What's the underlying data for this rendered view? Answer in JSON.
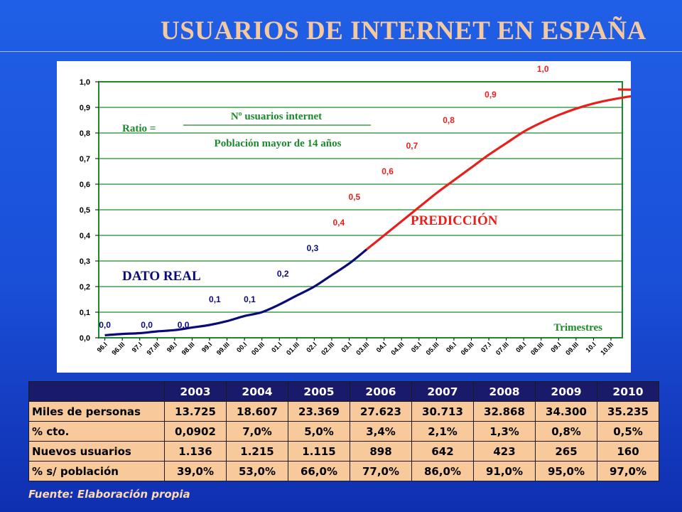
{
  "title": "USUARIOS DE INTERNET EN ESPAÑA",
  "chart_data": {
    "type": "line",
    "ylim": [
      0,
      1
    ],
    "y_ticks": [
      "1,0",
      "0,9",
      "0,8",
      "0,7",
      "0,6",
      "0,5",
      "0,4",
      "0,3",
      "0,2",
      "0,1",
      "0,0"
    ],
    "x_ticks": [
      "96.I",
      "96.III",
      "97.I",
      "97.III",
      "98.I",
      "98.III",
      "99.I",
      "99.III",
      "00.I",
      "00.III",
      "01.I",
      "01.III",
      "02.I",
      "02.III",
      "03.I",
      "03.III",
      "04.I",
      "04.III",
      "05.I",
      "05.III",
      "06.I",
      "06.III",
      "07.I",
      "07.III",
      "08.I",
      "08.III",
      "09.I",
      "09.III",
      "10.I",
      "10.III"
    ],
    "xlabel": "Trimestres",
    "formula": {
      "label": "Ratio =",
      "numerator": "Nº usuarios internet",
      "denominator": "Población mayor de 14 años"
    },
    "series": [
      {
        "name": "DATO REAL",
        "color": "#0a0a7a",
        "values": [
          0.01,
          0.015,
          0.018,
          0.025,
          0.03,
          0.04,
          0.05,
          0.065,
          0.085,
          0.1,
          0.13,
          0.165,
          0.2,
          0.245,
          0.29,
          0.345
        ]
      },
      {
        "name": "PREDICCIÓN",
        "color": "#e8201c",
        "values": [
          0.345,
          0.4,
          0.455,
          0.51,
          0.565,
          0.615,
          0.665,
          0.715,
          0.76,
          0.805,
          0.84,
          0.87,
          0.895,
          0.915,
          0.93,
          0.942,
          0.95,
          0.958,
          0.965,
          0.97
        ]
      }
    ],
    "point_labels": [
      {
        "text": "0,0",
        "x": 0,
        "y": 0.0,
        "color": "#0a0a7a"
      },
      {
        "text": "0,0",
        "x": 2.4,
        "y": 0.0,
        "color": "#0a0a7a"
      },
      {
        "text": "0,0",
        "x": 4.5,
        "y": 0.0,
        "color": "#0a0a7a"
      },
      {
        "text": "0,1",
        "x": 6.3,
        "y": 0.1,
        "color": "#0a0a7a"
      },
      {
        "text": "0,1",
        "x": 8.3,
        "y": 0.1,
        "color": "#0a0a7a"
      },
      {
        "text": "0,2",
        "x": 10.2,
        "y": 0.2,
        "color": "#0a0a7a"
      },
      {
        "text": "0,3",
        "x": 11.9,
        "y": 0.3,
        "color": "#0a0a7a"
      },
      {
        "text": "0,4",
        "x": 13.4,
        "y": 0.4,
        "color": "#e8201c"
      },
      {
        "text": "0,5",
        "x": 14.3,
        "y": 0.5,
        "color": "#e8201c"
      },
      {
        "text": "0,6",
        "x": 16.2,
        "y": 0.6,
        "color": "#e8201c"
      },
      {
        "text": "0,7",
        "x": 17.6,
        "y": 0.7,
        "color": "#e8201c"
      },
      {
        "text": "0,8",
        "x": 19.7,
        "y": 0.8,
        "color": "#e8201c"
      },
      {
        "text": "0,9",
        "x": 22.1,
        "y": 0.9,
        "color": "#e8201c"
      },
      {
        "text": "1,0",
        "x": 25.1,
        "y": 1.0,
        "color": "#e8201c"
      }
    ]
  },
  "table": {
    "headers": [
      "",
      "2003",
      "2004",
      "2005",
      "2006",
      "2007",
      "2008",
      "2009",
      "2010"
    ],
    "rows": [
      {
        "label": "Miles de personas",
        "values": [
          "13.725",
          "18.607",
          "23.369",
          "27.623",
          "30.713",
          "32.868",
          "34.300",
          "35.235"
        ]
      },
      {
        "label": "% cto.",
        "values": [
          "0,0902",
          "7,0%",
          "5,0%",
          "3,4%",
          "2,1%",
          "1,3%",
          "0,8%",
          "0,5%"
        ]
      },
      {
        "label": "Nuevos usuarios",
        "values": [
          "1.136",
          "1.215",
          "1.115",
          "898",
          "642",
          "423",
          "265",
          "160"
        ]
      },
      {
        "label": "% s/ población",
        "values": [
          "39,0%",
          "53,0%",
          "66,0%",
          "77,0%",
          "86,0%",
          "91,0%",
          "95,0%",
          "97,0%"
        ]
      }
    ]
  },
  "source": "Fuente: Elaboración propia"
}
